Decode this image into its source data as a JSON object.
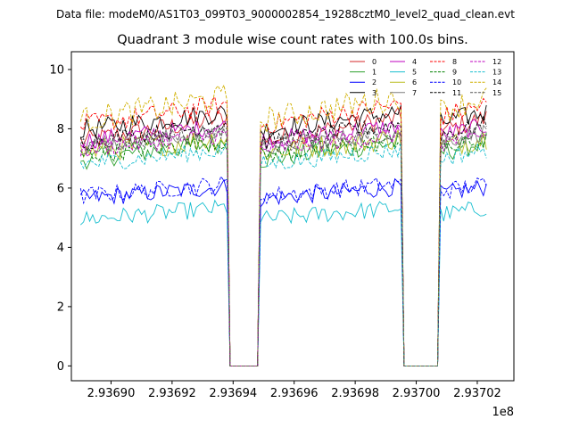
{
  "figure": {
    "suptitle": "Data file: modeM0/AS1T03_099T03_9000002854_19288cztM0_level2_quad_clean.evt",
    "title": "Quadrant 3 module wise count rates with 100.0s bins."
  },
  "chart_data": {
    "type": "line",
    "title": "Quadrant 3 module wise count rates with 100.0s bins.",
    "xlabel": "",
    "ylabel": "",
    "x_offset_label": "1e8",
    "xlim": [
      293688700,
      293703200
    ],
    "ylim": [
      -0.5,
      10.6
    ],
    "grid": false,
    "legend_position": "top-right",
    "legend_columns": 4,
    "x_ticks": [
      293690000,
      293692000,
      293694000,
      293696000,
      293698000,
      293700000,
      293702000
    ],
    "x_tick_labels": [
      "2.93690",
      "2.93692",
      "2.93694",
      "2.93696",
      "2.93698",
      "2.93700",
      "2.93702"
    ],
    "y_ticks": [
      0,
      2,
      4,
      6,
      8,
      10
    ],
    "y_tick_labels": [
      "0",
      "2",
      "4",
      "6",
      "8",
      "10"
    ],
    "bin_width_s": 100,
    "segments": [
      {
        "start": 293689000,
        "end": 293693800
      },
      {
        "start": 293694900,
        "end": 293699500
      },
      {
        "start": 293700800,
        "end": 293702300
      }
    ],
    "series": [
      {
        "name": "0",
        "color": "#d62728",
        "dash": "solid",
        "mean": 7.9,
        "noise": 0.35,
        "trend": 0.8
      },
      {
        "name": "1",
        "color": "#2ca02c",
        "dash": "solid",
        "mean": 7.2,
        "noise": 0.35,
        "trend": 0.6
      },
      {
        "name": "2",
        "color": "#0000ff",
        "dash": "solid",
        "mean": 5.8,
        "noise": 0.3,
        "trend": 0.4
      },
      {
        "name": "3",
        "color": "#000000",
        "dash": "solid",
        "mean": 8.2,
        "noise": 0.35,
        "trend": 0.6
      },
      {
        "name": "4",
        "color": "#bf00bf",
        "dash": "solid",
        "mean": 7.8,
        "noise": 0.3,
        "trend": 0.5
      },
      {
        "name": "5",
        "color": "#17becf",
        "dash": "solid",
        "mean": 5.1,
        "noise": 0.3,
        "trend": 0.4
      },
      {
        "name": "6",
        "color": "#bcbd22",
        "dash": "solid",
        "mean": 7.4,
        "noise": 0.4,
        "trend": 0.5
      },
      {
        "name": "7",
        "color": "#7f7f7f",
        "dash": "solid",
        "mean": 7.6,
        "noise": 0.3,
        "trend": 0.5
      },
      {
        "name": "8",
        "color": "#ff0000",
        "dash": "dashed",
        "mean": 8.4,
        "noise": 0.35,
        "trend": 0.7
      },
      {
        "name": "9",
        "color": "#008000",
        "dash": "dashed",
        "mean": 7.3,
        "noise": 0.3,
        "trend": 0.5
      },
      {
        "name": "10",
        "color": "#0000ff",
        "dash": "dashed",
        "mean": 5.9,
        "noise": 0.3,
        "trend": 0.4
      },
      {
        "name": "11",
        "color": "#000000",
        "dash": "dashed",
        "mean": 7.8,
        "noise": 0.3,
        "trend": 0.6
      },
      {
        "name": "12",
        "color": "#bf00bf",
        "dash": "dashed",
        "mean": 7.5,
        "noise": 0.3,
        "trend": 0.5
      },
      {
        "name": "13",
        "color": "#17becf",
        "dash": "dashed",
        "mean": 7.0,
        "noise": 0.3,
        "trend": 0.5
      },
      {
        "name": "14",
        "color": "#d0b000",
        "dash": "dashed",
        "mean": 8.6,
        "noise": 0.45,
        "trend": 0.8
      },
      {
        "name": "15",
        "color": "#555555",
        "dash": "dashed",
        "mean": 7.6,
        "noise": 0.3,
        "trend": 0.5
      }
    ]
  }
}
